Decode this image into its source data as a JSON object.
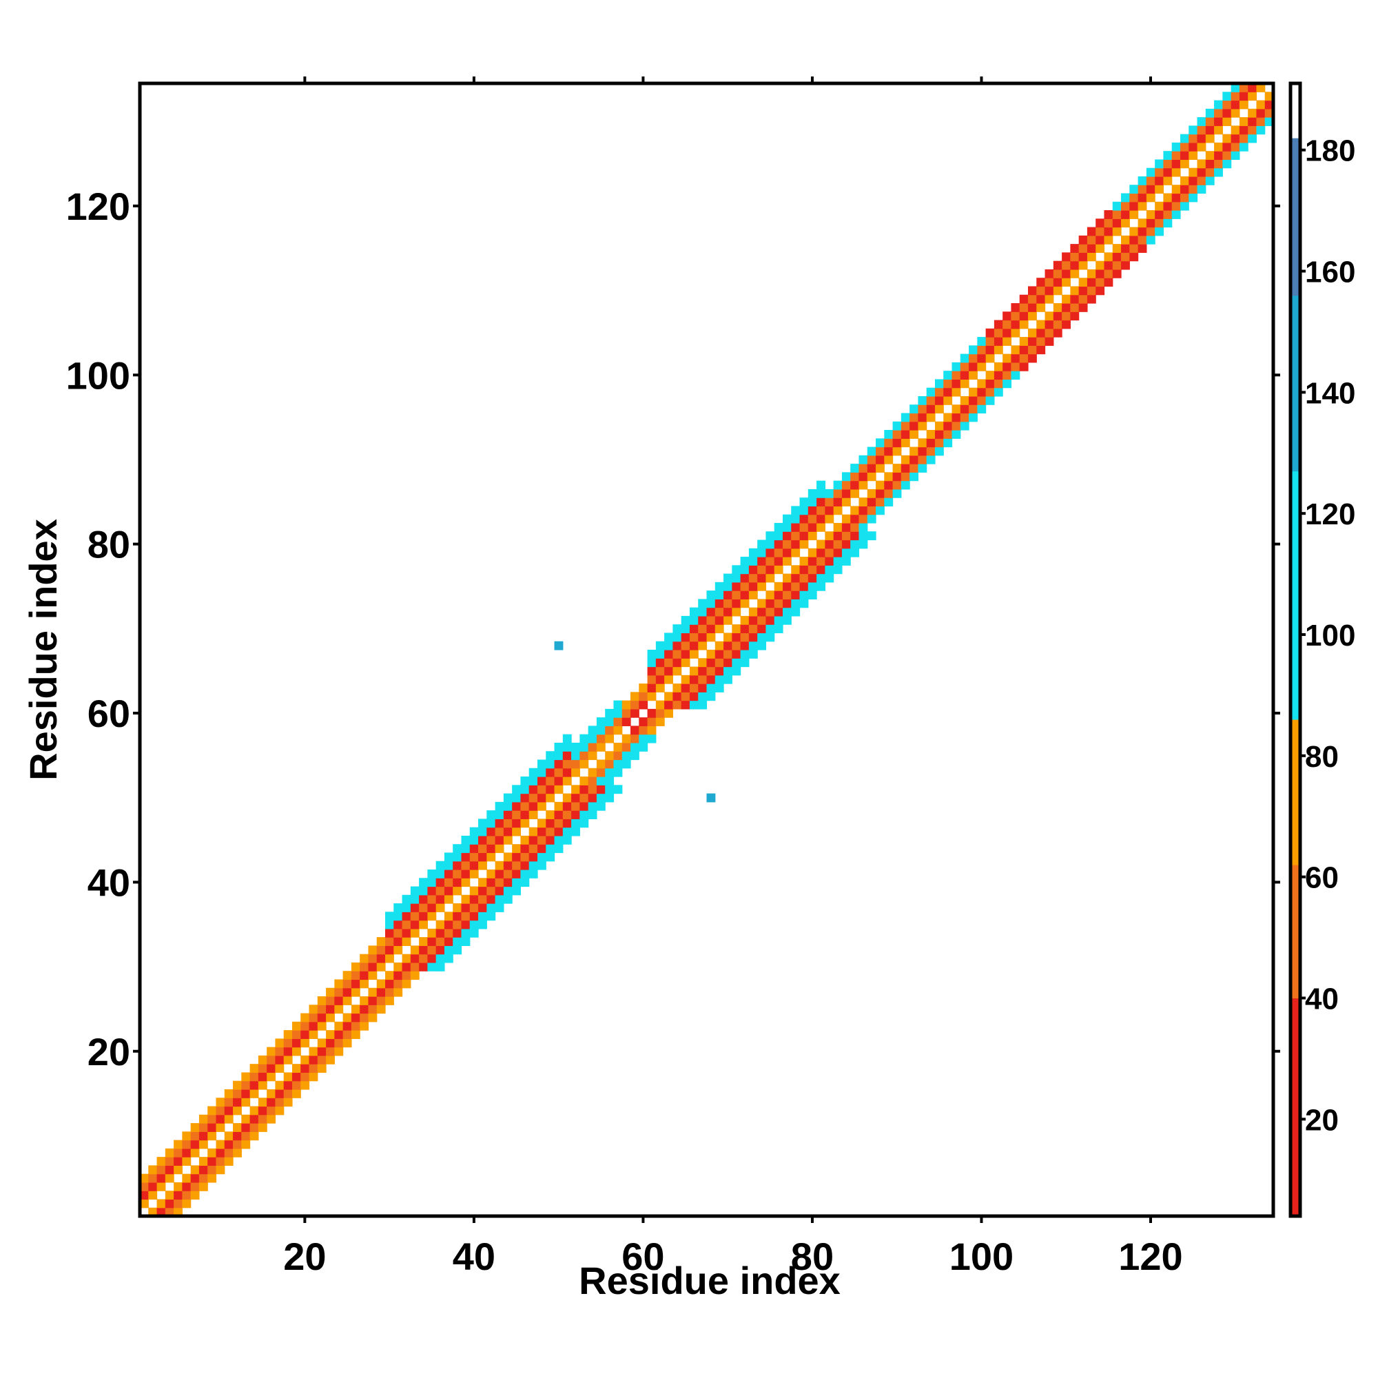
{
  "chart_data": {
    "type": "heatmap",
    "title": "",
    "xlabel": "Residue index",
    "ylabel": "Residue index",
    "xlim": [
      1,
      134
    ],
    "ylim": [
      1,
      134
    ],
    "x_ticks": [
      20,
      40,
      60,
      80,
      100,
      120
    ],
    "y_ticks": [
      20,
      40,
      60,
      80,
      100,
      120
    ],
    "grid": false,
    "legend": "colorbar right",
    "colorbar": {
      "range": [
        4,
        191
      ],
      "ticks": [
        20,
        40,
        60,
        80,
        100,
        120,
        140,
        160,
        180
      ],
      "segments": [
        {
          "from": 4,
          "to": 40,
          "color": "#e8231c"
        },
        {
          "from": 40,
          "to": 62,
          "color": "#f0731c"
        },
        {
          "from": 62,
          "to": 86,
          "color": "#f99f00"
        },
        {
          "from": 86,
          "to": 127,
          "color": "#16e1ee"
        },
        {
          "from": 127,
          "to": 156,
          "color": "#1fa9d0"
        },
        {
          "from": 156,
          "to": 182,
          "color": "#4b7fb6"
        },
        {
          "from": 182,
          "to": 191,
          "color": "#ffffff"
        }
      ]
    },
    "value_classes": {
      "red": 25,
      "darkorange": 50,
      "orange": 72,
      "cyan": 105,
      "blue": 140
    },
    "diagonal_profile": [
      {
        "from": 1,
        "to": 30,
        "pattern": [
          "orange",
          "red",
          "darkorange",
          "orange"
        ]
      },
      {
        "from": 30,
        "to": 52,
        "pattern": [
          "orange",
          "red",
          "darkorange",
          "red",
          "cyan",
          "cyan"
        ]
      },
      {
        "from": 52,
        "to": 58,
        "pattern": [
          "orange",
          "darkorange",
          "cyan",
          "cyan"
        ]
      },
      {
        "from": 58,
        "to": 61,
        "pattern": [
          "red",
          "darkorange",
          "orange"
        ]
      },
      {
        "from": 61,
        "to": 82,
        "pattern": [
          "orange",
          "red",
          "darkorange",
          "red",
          "cyan",
          "cyan"
        ]
      },
      {
        "from": 82,
        "to": 101,
        "pattern": [
          "orange",
          "red",
          "darkorange",
          "cyan"
        ]
      },
      {
        "from": 101,
        "to": 116,
        "pattern": [
          "orange",
          "red",
          "darkorange",
          "red"
        ]
      },
      {
        "from": 116,
        "to": 135,
        "pattern": [
          "orange",
          "red",
          "darkorange",
          "cyan"
        ]
      }
    ],
    "extra_contacts": [
      {
        "x": 50,
        "y": 68,
        "value": 140
      },
      {
        "x": 68,
        "y": 50,
        "value": 140
      }
    ]
  }
}
